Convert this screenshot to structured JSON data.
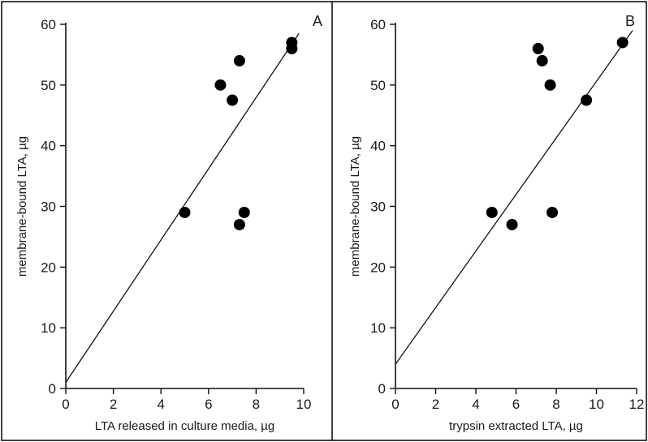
{
  "chart_data": [
    {
      "type": "scatter",
      "panel_label": "A",
      "xlabel": "LTA released in culture media, µg",
      "ylabel": "membrane-bound LTA, µg",
      "xlim": [
        0,
        10
      ],
      "ylim": [
        0,
        60
      ],
      "xticks": [
        0,
        2,
        4,
        6,
        8,
        10
      ],
      "yticks": [
        0,
        10,
        20,
        30,
        40,
        50,
        60
      ],
      "points": [
        {
          "x": 5.0,
          "y": 29
        },
        {
          "x": 6.5,
          "y": 50
        },
        {
          "x": 7.0,
          "y": 47.5
        },
        {
          "x": 7.3,
          "y": 54
        },
        {
          "x": 7.3,
          "y": 27
        },
        {
          "x": 7.5,
          "y": 29
        },
        {
          "x": 9.5,
          "y": 57
        },
        {
          "x": 9.5,
          "y": 56
        }
      ],
      "fit_line": [
        {
          "x": 0,
          "y": 1
        },
        {
          "x": 9.8,
          "y": 58.5
        }
      ],
      "grid": false
    },
    {
      "type": "scatter",
      "panel_label": "B",
      "xlabel": "trypsin extracted LTA, µg",
      "ylabel": "membrane-bound LTA, µg",
      "xlim": [
        0,
        12
      ],
      "ylim": [
        0,
        60
      ],
      "xticks": [
        0,
        2,
        4,
        6,
        8,
        10,
        12
      ],
      "yticks": [
        0,
        10,
        20,
        30,
        40,
        50,
        60
      ],
      "points": [
        {
          "x": 4.8,
          "y": 29
        },
        {
          "x": 5.8,
          "y": 27
        },
        {
          "x": 7.1,
          "y": 56
        },
        {
          "x": 7.3,
          "y": 54
        },
        {
          "x": 7.7,
          "y": 50
        },
        {
          "x": 7.8,
          "y": 29
        },
        {
          "x": 9.5,
          "y": 47.5
        },
        {
          "x": 11.3,
          "y": 57
        }
      ],
      "fit_line": [
        {
          "x": 0,
          "y": 4
        },
        {
          "x": 11.8,
          "y": 59
        }
      ],
      "grid": false
    }
  ]
}
